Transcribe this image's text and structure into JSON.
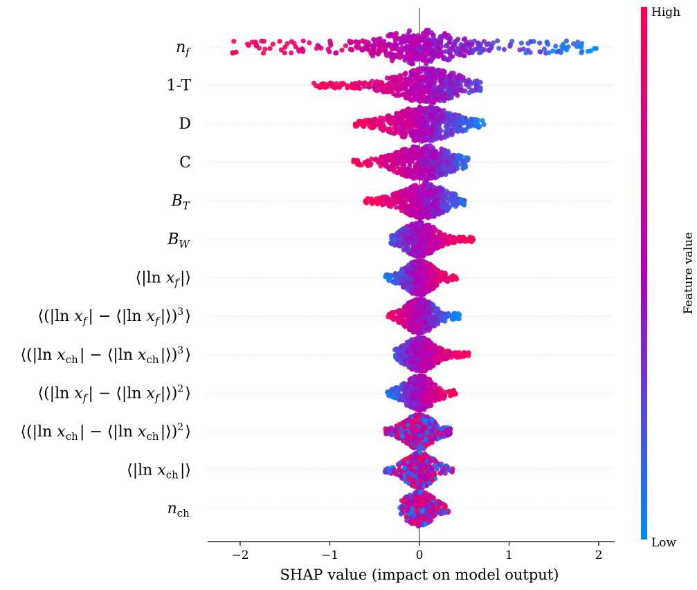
{
  "chart_data": {
    "type": "scatter",
    "subtype": "shap-beeswarm",
    "title": "",
    "xlabel": "SHAP value (impact on model output)",
    "xlim": [
      -2.35,
      2.2
    ],
    "xticks": [
      -2,
      -1,
      0,
      1,
      2
    ],
    "xtick_labels": [
      "−2",
      "−1",
      "0",
      "1",
      "2"
    ],
    "zero_line": true,
    "grid": false,
    "colorbar": {
      "label": "Feature value",
      "high_label": "High",
      "low_label": "Low",
      "high_color": "#ff0052",
      "mid_color": "#b000b8",
      "low_color": "#008bfb"
    },
    "features": [
      {
        "label": "n_f",
        "min": -2.13,
        "max": 1.98,
        "peak": 0.0,
        "width": 0.55,
        "dir": -1,
        "segmented": true
      },
      {
        "label": "1-T",
        "min": -1.18,
        "max": 0.68,
        "peak": 0.1,
        "width": 0.42,
        "dir": -1,
        "segmented": false
      },
      {
        "label": "D",
        "min": -0.72,
        "max": 0.72,
        "peak": 0.05,
        "width": 0.4,
        "dir": -1,
        "segmented": false
      },
      {
        "label": "C",
        "min": -0.75,
        "max": 0.55,
        "peak": 0.05,
        "width": 0.36,
        "dir": -1,
        "segmented": false
      },
      {
        "label": "B_T",
        "min": -0.62,
        "max": 0.52,
        "peak": 0.05,
        "width": 0.3,
        "dir": -1,
        "segmented": false
      },
      {
        "label": "B_W",
        "min": -0.32,
        "max": 0.6,
        "peak": 0.0,
        "width": 0.22,
        "dir": 1,
        "segmented": false
      },
      {
        "label": "⟨|ln x_f|⟩",
        "min": -0.38,
        "max": 0.42,
        "peak": 0.0,
        "width": 0.2,
        "dir": 1,
        "segmented": false
      },
      {
        "label": "⟨(|ln x_f| − ⟨|ln x_f|⟩)³⟩",
        "min": -0.35,
        "max": 0.45,
        "peak": 0.0,
        "width": 0.2,
        "dir": -1,
        "segmented": false
      },
      {
        "label": "⟨(|ln x_ch| − ⟨|ln x_ch|⟩)³⟩",
        "min": -0.3,
        "max": 0.55,
        "peak": 0.0,
        "width": 0.2,
        "dir": 1,
        "segmented": false
      },
      {
        "label": "⟨(|ln x_f| − ⟨|ln x_f|⟩)²⟩",
        "min": -0.36,
        "max": 0.42,
        "peak": 0.0,
        "width": 0.18,
        "dir": 1,
        "segmented": false
      },
      {
        "label": "⟨(|ln x_ch| − ⟨|ln x_ch|⟩)²⟩",
        "min": -0.38,
        "max": 0.35,
        "peak": 0.0,
        "width": 0.16,
        "dir": 0,
        "segmented": false
      },
      {
        "label": "⟨|ln x_ch|⟩",
        "min": -0.4,
        "max": 0.38,
        "peak": 0.0,
        "width": 0.14,
        "dir": 0,
        "segmented": false
      },
      {
        "label": "n_ch",
        "min": -0.22,
        "max": 0.33,
        "peak": 0.0,
        "width": 0.12,
        "dir": 0,
        "segmented": false
      }
    ]
  }
}
